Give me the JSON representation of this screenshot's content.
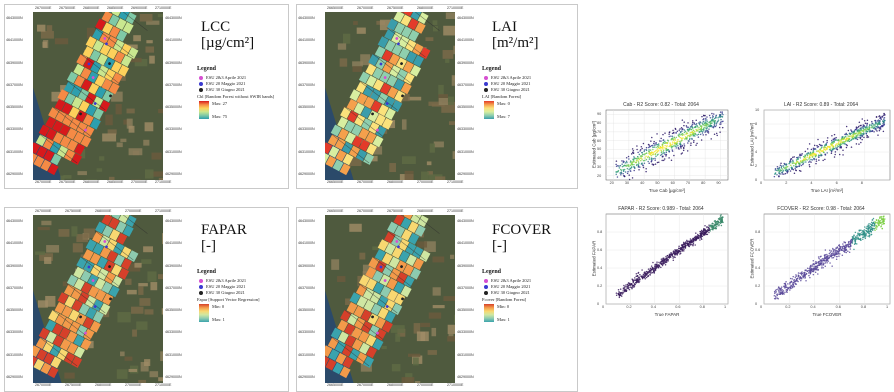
{
  "maps": [
    {
      "id": "lcc",
      "title": "LCC",
      "unit": "[µg/cm²]",
      "legend": {
        "heading": "Legend",
        "items": [
          {
            "label": "ESU 2&3 Aprile 2021",
            "color": "#d64fd1"
          },
          {
            "label": "ESU 20 Maggio 2021",
            "color": "#3a3ad0"
          },
          {
            "label": "ESU 30 Giugno 2021",
            "color": "#222222"
          }
        ],
        "layer": "Cbl [Random Forest without SWIR bands]",
        "max_label": "Max: 27",
        "min_label": "Max: 75"
      },
      "top_coords": [
        "2670000E",
        "2675000E",
        "2680000E",
        "2685000E",
        "2690000E",
        "2710000E"
      ],
      "bottom_coords": [
        "2670000E",
        "2675000E",
        "2680000E",
        "2685000E",
        "2700000E",
        "2710000E"
      ],
      "left_coords": [
        "4643000N",
        "4641000N",
        "4639000N",
        "4637000N",
        "4635000N",
        "4633000N",
        "4631000N",
        "4629000N"
      ],
      "right_coords": [
        "4643000N",
        "4641000N",
        "4639000N",
        "4637000N",
        "4635000N",
        "4633000N",
        "4631000N",
        "4629000N"
      ]
    },
    {
      "id": "lai",
      "title": "LAI",
      "unit": "[m²/m²]",
      "legend": {
        "heading": "Legend",
        "items": [
          {
            "label": "ESU 2&3 Aprile 2021",
            "color": "#d64fd1"
          },
          {
            "label": "ESU 20 Maggio 2021",
            "color": "#3a3ad0"
          },
          {
            "label": "ESU 30 Giugno 2021",
            "color": "#222222"
          }
        ],
        "layer": "LAI [Random Forest]",
        "max_label": "Max: 0",
        "min_label": "Max: 7"
      },
      "top_coords": [
        "2665000E",
        "2670000E",
        "2675000E",
        "2680000E",
        "2710000E"
      ],
      "bottom_coords": [
        "2665000E",
        "2670000E",
        "2680000E",
        "2700000E",
        "2710000E"
      ],
      "left_coords": [
        "4643000N",
        "4641000N",
        "4639000N",
        "4637000N",
        "4635000N",
        "4633000N",
        "4631000N",
        "4629000N"
      ],
      "right_coords": [
        "4643000N",
        "4641000N",
        "4639000N",
        "4637000N",
        "4635000N",
        "4633000N",
        "4631000N",
        "4629000N"
      ]
    },
    {
      "id": "fapar",
      "title": "FAPAR",
      "unit": "[-]",
      "legend": {
        "heading": "Legend",
        "items": [
          {
            "label": "ESU 2&3 Aprile 2021",
            "color": "#d64fd1"
          },
          {
            "label": "ESU 20 Maggio 2021",
            "color": "#3a3ad0"
          },
          {
            "label": "ESU 30 Giugno 2021",
            "color": "#222222"
          }
        ],
        "layer": "Fapar [Support Vector Regression]",
        "max_label": "Min: 0",
        "min_label": "Max: 1"
      },
      "top_coords": [
        "2670000E",
        "2675000E",
        "2680000E",
        "2700000E",
        "2710000E"
      ],
      "bottom_coords": [
        "2670000E",
        "2675000E",
        "2680000E",
        "2700000E",
        "2710000E"
      ],
      "left_coords": [
        "4643000N",
        "4641000N",
        "4639000N",
        "4637000N",
        "4635000N",
        "4633000N",
        "4631000N",
        "4629000N"
      ],
      "right_coords": [
        "4643000N",
        "4641000N",
        "4639000N",
        "4637000N",
        "4635000N",
        "4633000N",
        "4631000N",
        "4629000N"
      ]
    },
    {
      "id": "fcover",
      "title": "FCOVER",
      "unit": "[-]",
      "legend": {
        "heading": "Legend",
        "items": [
          {
            "label": "ESU 2&3 Aprile 2021",
            "color": "#d64fd1"
          },
          {
            "label": "ESU 20 Maggio 2021",
            "color": "#3a3ad0"
          },
          {
            "label": "ESU 30 Giugno 2021",
            "color": "#222222"
          }
        ],
        "layer": "Fcover [Random Forest]",
        "max_label": "Min: 0",
        "min_label": "Max: 1"
      },
      "top_coords": [
        "2665000E",
        "2670000E",
        "2675000E",
        "2680000E",
        "2710000E"
      ],
      "bottom_coords": [
        "2665000E",
        "2670000E",
        "2680000E",
        "2700000E",
        "2710000E"
      ],
      "left_coords": [
        "4643000N",
        "4641000N",
        "4639000N",
        "4637000N",
        "4635000N",
        "4633000N",
        "4631000N",
        "4629000N"
      ],
      "right_coords": [
        "4643000N",
        "4641000N",
        "4639000N",
        "4637000N",
        "4635000N",
        "4633000N",
        "4631000N",
        "4629000N"
      ]
    }
  ],
  "chart_data": [
    {
      "type": "scatter",
      "title": "Cab - R2 Score: 0.82 - Total: 2064",
      "xlabel": "True Cab [µg/cm²]",
      "ylabel": "Estimated Cab [µg/cm²]",
      "xlim": [
        15,
        95
      ],
      "ylim": [
        15,
        95
      ],
      "xticks": [
        20,
        30,
        40,
        50,
        60,
        70,
        80,
        90
      ],
      "yticks": [
        20,
        30,
        40,
        50,
        60,
        70,
        80,
        90
      ],
      "colormap": "density",
      "trend": {
        "slope": 0.9,
        "intercept": 5,
        "spread": 7
      }
    },
    {
      "type": "scatter",
      "title": "LAI - R2 Score: 0.89 - Total: 2064",
      "xlabel": "True LAI [m²/m²]",
      "ylabel": "Estimated LAI [m²/m²]",
      "xlim": [
        0,
        10
      ],
      "ylim": [
        0,
        10
      ],
      "xticks": [
        0,
        2,
        4,
        6,
        8
      ],
      "yticks": [
        0,
        2,
        4,
        6,
        8,
        10
      ],
      "colormap": "density",
      "trend": {
        "slope": 0.85,
        "intercept": 0.3,
        "spread": 0.6
      }
    },
    {
      "type": "scatter",
      "title": "FAPAR - R2 Score: 0.989 - Total: 2064",
      "xlabel": "True FAPAR",
      "ylabel": "Estimated FAPAR",
      "xlim": [
        0,
        1
      ],
      "ylim": [
        0,
        1
      ],
      "xticks": [
        0.0,
        0.2,
        0.4,
        0.6,
        0.8,
        1.0
      ],
      "yticks": [
        0.0,
        0.2,
        0.4,
        0.6,
        0.8
      ],
      "colormap": "dark",
      "trend": {
        "slope": 0.98,
        "intercept": 0.01,
        "spread": 0.025
      }
    },
    {
      "type": "scatter",
      "title": "FCOVER - R2 Score: 0.98 - Total: 2064",
      "xlabel": "True FCOVER",
      "ylabel": "Estimated FCOVER",
      "xlim": [
        0,
        1
      ],
      "ylim": [
        0,
        1
      ],
      "xticks": [
        0.0,
        0.2,
        0.4,
        0.6,
        0.8,
        1.0
      ],
      "yticks": [
        0.0,
        0.2,
        0.4,
        0.6,
        0.8
      ],
      "colormap": "purple",
      "trend": {
        "slope": 0.98,
        "intercept": 0.01,
        "spread": 0.035
      }
    }
  ]
}
